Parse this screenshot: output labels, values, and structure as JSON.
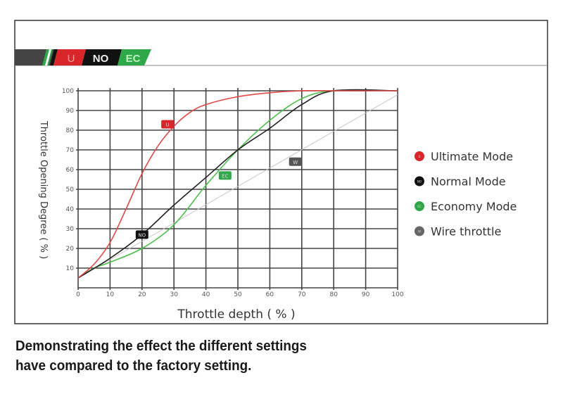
{
  "logo": {
    "badges": [
      "U",
      "NO",
      "EC"
    ],
    "colors": {
      "U": "#d8262b",
      "NO": "#111111",
      "EC": "#2fa84a",
      "bar": "#444444"
    }
  },
  "chart_data": {
    "type": "line",
    "title": "",
    "xlabel": "Throttle depth ( % )",
    "ylabel": "Throttle Opening Degree ( % )",
    "xlim": [
      0,
      100
    ],
    "ylim": [
      0,
      100
    ],
    "xticks": [
      "0",
      "10",
      "20",
      "30",
      "40",
      "50",
      "60",
      "70",
      "80",
      "90",
      "100"
    ],
    "yticks": [
      "10",
      "20",
      "30",
      "40",
      "50",
      "60",
      "70",
      "80",
      "90",
      "100"
    ],
    "grid": true,
    "legend_position": "right",
    "series": [
      {
        "name": "Ultimate Mode",
        "badge": "U",
        "color": "#e04848",
        "label_at": [
          28,
          83
        ],
        "x": [
          0,
          5,
          10,
          15,
          20,
          25,
          30,
          35,
          40,
          50,
          60,
          70,
          80,
          100
        ],
        "y": [
          5,
          12,
          23,
          40,
          58,
          72,
          82,
          89,
          93,
          97,
          99,
          100,
          100,
          100
        ]
      },
      {
        "name": "Normal Mode",
        "badge": "NO",
        "color": "#222222",
        "label_at": [
          20,
          27
        ],
        "x": [
          0,
          10,
          20,
          30,
          40,
          50,
          60,
          70,
          80,
          100
        ],
        "y": [
          5,
          15,
          27,
          42,
          56,
          70,
          81,
          93,
          100,
          100
        ]
      },
      {
        "name": "Economy Mode",
        "badge": "EC",
        "color": "#4cbf4c",
        "label_at": [
          46,
          57
        ],
        "x": [
          0,
          5,
          10,
          20,
          30,
          40,
          50,
          60,
          70,
          80,
          100
        ],
        "y": [
          5,
          10,
          13,
          20,
          32,
          52,
          70,
          85,
          96,
          100,
          100
        ]
      },
      {
        "name": "Wire throttle",
        "badge": "W",
        "color": "#c8c8c8",
        "label_at": [
          68,
          64
        ],
        "x": [
          0,
          100
        ],
        "y": [
          5,
          98
        ]
      }
    ],
    "legend_dot_colors": [
      "#d8262b",
      "#111111",
      "#2fa84a",
      "#666666"
    ]
  },
  "caption": {
    "line1": "Demonstrating the effect the different settings",
    "line2": "have compared to the factory setting."
  }
}
